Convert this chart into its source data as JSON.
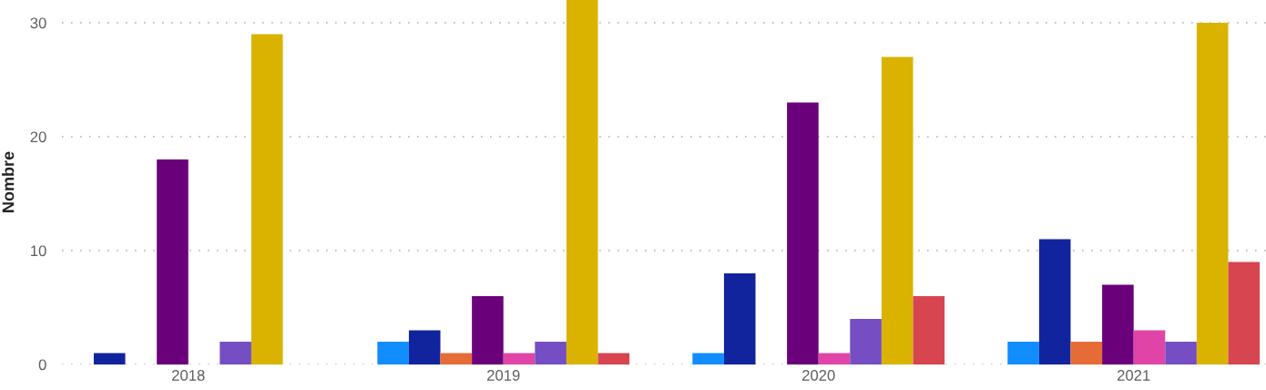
{
  "chart_data": {
    "type": "bar",
    "ylabel": "Nombre",
    "categories": [
      "2018",
      "2019",
      "2020",
      "2021"
    ],
    "series": [
      {
        "color": "#118dff",
        "values": [
          null,
          2,
          1,
          2
        ]
      },
      {
        "color": "#12239e",
        "values": [
          1,
          3,
          8,
          11
        ]
      },
      {
        "color": "#e66c37",
        "values": [
          null,
          1,
          null,
          2
        ]
      },
      {
        "color": "#6b007b",
        "values": [
          18,
          6,
          23,
          7
        ]
      },
      {
        "color": "#e044a7",
        "values": [
          null,
          1,
          1,
          3
        ]
      },
      {
        "color": "#744ec2",
        "values": [
          2,
          2,
          4,
          2
        ]
      },
      {
        "color": "#d9b300",
        "values": [
          29,
          32,
          27,
          30
        ]
      },
      {
        "color": "#d64550",
        "values": [
          null,
          1,
          6,
          9
        ]
      }
    ],
    "ylim": [
      0,
      32
    ],
    "yticks": [
      0,
      10,
      20,
      30
    ],
    "grid": "y"
  }
}
